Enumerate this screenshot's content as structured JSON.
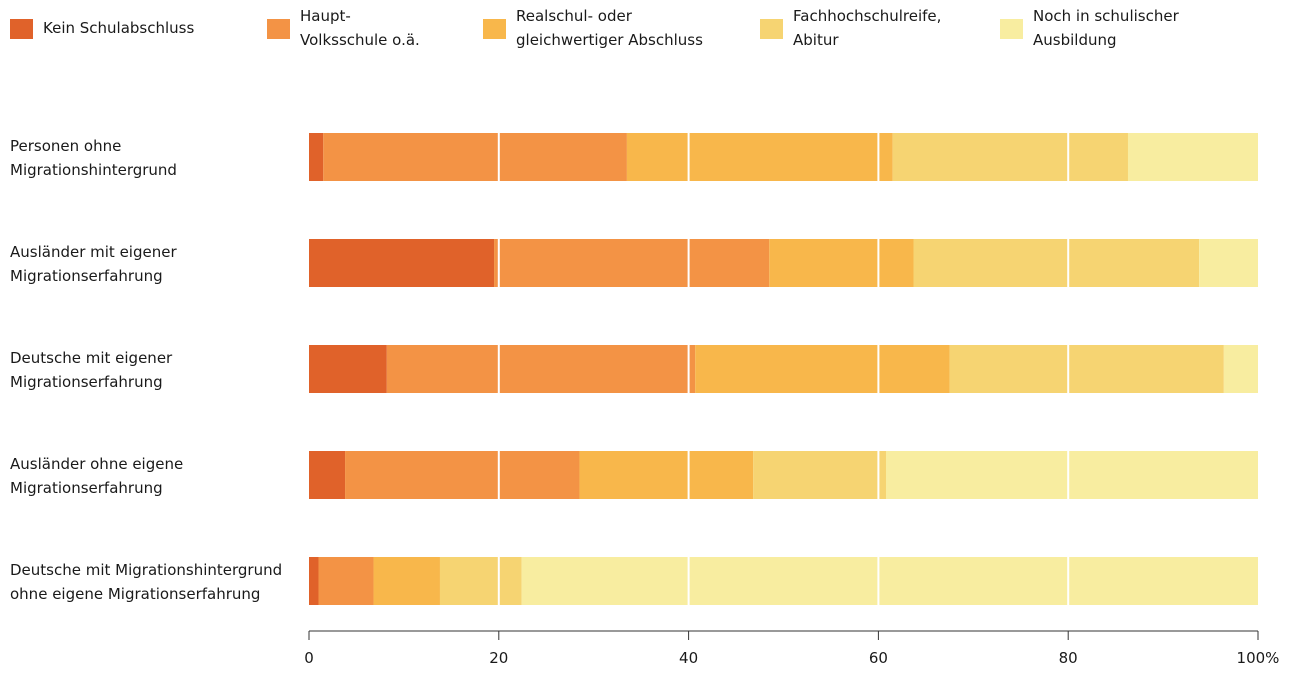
{
  "chart_data": {
    "type": "bar",
    "orientation": "horizontal",
    "stacked": true,
    "title": "",
    "xlabel": "",
    "ylabel": "",
    "xlim": [
      0,
      100
    ],
    "x_ticks": [
      {
        "value": 0,
        "label": "0"
      },
      {
        "value": 20,
        "label": "20"
      },
      {
        "value": 40,
        "label": "40"
      },
      {
        "value": 60,
        "label": "60"
      },
      {
        "value": 80,
        "label": "80"
      },
      {
        "value": 100,
        "label": "100%"
      }
    ],
    "grid": true,
    "legend_position": "top",
    "categories": [
      [
        "Personen ohne",
        "Migrationshintergrund"
      ],
      [
        "Ausländer mit eigener",
        "Migrationserfahrung"
      ],
      [
        "Deutsche mit eigener",
        "Migrationserfahrung"
      ],
      [
        "Ausländer ohne eigene",
        "Migrationserfahrung"
      ],
      [
        "Deutsche mit Migrationshintergrund",
        "ohne eigene Migrationserfahrung"
      ]
    ],
    "series": [
      {
        "name": [
          "Kein Schulabschluss"
        ],
        "color": "#e0622a",
        "values": [
          1.5,
          19.5,
          8.2,
          3.8,
          1.0
        ]
      },
      {
        "name": [
          "Haupt-",
          "Volksschule o.ä."
        ],
        "color": "#f39345",
        "values": [
          32.0,
          29.0,
          32.5,
          24.7,
          5.8
        ]
      },
      {
        "name": [
          "Realschul- oder",
          "gleichwertiger Abschluss"
        ],
        "color": "#f8b74b",
        "values": [
          28.0,
          15.2,
          26.8,
          18.3,
          7.0
        ]
      },
      {
        "name": [
          "Fachhochschulreife,",
          "Abitur"
        ],
        "color": "#f6d472",
        "values": [
          24.8,
          30.1,
          28.9,
          14.0,
          8.6
        ]
      },
      {
        "name": [
          "Noch in schulischer",
          "Ausbildung"
        ],
        "color": "#f8eda0",
        "values": [
          13.7,
          6.2,
          3.6,
          39.2,
          77.6
        ]
      }
    ]
  }
}
